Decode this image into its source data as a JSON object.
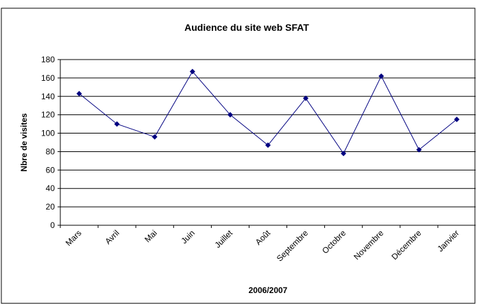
{
  "chart_data": {
    "type": "line",
    "title": "Audience du site web SFAT",
    "x_label": "2006/2007",
    "y_label": "Nbre de visites",
    "categories": [
      "Mars",
      "Avril",
      "Mai",
      "Juin",
      "Juillet",
      "Août",
      "Septembre",
      "Octobre",
      "Novembre",
      "Décembre",
      "Janvier"
    ],
    "series": [
      {
        "name": "Nbre de visites",
        "color": "#000080",
        "values": [
          143,
          110,
          96,
          167,
          120,
          87,
          138,
          78,
          162,
          82,
          115
        ]
      }
    ],
    "ylim": [
      0,
      180
    ],
    "yticks": [
      0,
      20,
      40,
      60,
      80,
      100,
      120,
      140,
      160,
      180
    ],
    "grid": true,
    "legend": false
  }
}
